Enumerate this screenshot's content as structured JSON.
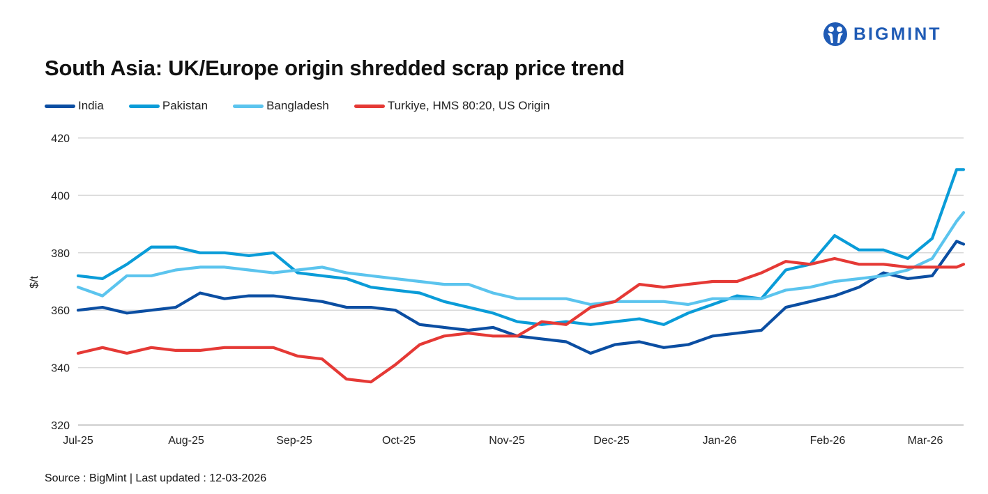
{
  "brand": {
    "name": "BIGMINT",
    "color": "#1F5BB5",
    "icon": "bigmint-logo-icon"
  },
  "title": "South Asia: UK/Europe origin shredded scrap price trend",
  "source": "Source : BigMint | Last updated : 12-03-2026",
  "chart_data": {
    "type": "line",
    "title": "South Asia: UK/Europe origin shredded scrap price trend",
    "xlabel": "",
    "ylabel": "$/t",
    "ylim": [
      320,
      420
    ],
    "yticks": [
      320,
      340,
      360,
      380,
      400,
      420
    ],
    "xlim": [
      "2025-07-01",
      "2026-03-12"
    ],
    "xticks": [
      {
        "date": "2025-07-01",
        "label": "Jul-25"
      },
      {
        "date": "2025-08-01",
        "label": "Aug-25"
      },
      {
        "date": "2025-09-01",
        "label": "Sep-25"
      },
      {
        "date": "2025-10-01",
        "label": "Oct-25"
      },
      {
        "date": "2025-11-01",
        "label": "Nov-25"
      },
      {
        "date": "2025-12-01",
        "label": "Dec-25"
      },
      {
        "date": "2026-01-01",
        "label": "Jan-26"
      },
      {
        "date": "2026-02-01",
        "label": "Feb-26"
      },
      {
        "date": "2026-03-01",
        "label": "Mar-26"
      }
    ],
    "grid": true,
    "legend_position": "top-left",
    "x": [
      "2025-07-01",
      "2025-07-08",
      "2025-07-15",
      "2025-07-22",
      "2025-07-29",
      "2025-08-05",
      "2025-08-12",
      "2025-08-19",
      "2025-08-26",
      "2025-09-02",
      "2025-09-09",
      "2025-09-16",
      "2025-09-23",
      "2025-09-30",
      "2025-10-07",
      "2025-10-14",
      "2025-10-21",
      "2025-10-28",
      "2025-11-04",
      "2025-11-11",
      "2025-11-18",
      "2025-11-25",
      "2025-12-02",
      "2025-12-09",
      "2025-12-16",
      "2025-12-23",
      "2025-12-30",
      "2026-01-06",
      "2026-01-13",
      "2026-01-20",
      "2026-01-27",
      "2026-02-03",
      "2026-02-10",
      "2026-02-17",
      "2026-02-24",
      "2026-03-03",
      "2026-03-10",
      "2026-03-12"
    ],
    "series": [
      {
        "name": "India",
        "color": "#0B4EA2",
        "values": [
          360,
          361,
          359,
          360,
          361,
          366,
          364,
          365,
          365,
          364,
          363,
          361,
          361,
          360,
          355,
          354,
          353,
          354,
          351,
          350,
          349,
          345,
          348,
          349,
          347,
          348,
          351,
          352,
          353,
          361,
          363,
          365,
          368,
          373,
          371,
          372,
          384,
          383
        ]
      },
      {
        "name": "Pakistan",
        "color": "#0A9CD8",
        "values": [
          372,
          371,
          376,
          382,
          382,
          380,
          380,
          379,
          380,
          373,
          372,
          371,
          368,
          367,
          366,
          363,
          361,
          359,
          356,
          355,
          356,
          355,
          356,
          357,
          355,
          359,
          362,
          365,
          364,
          374,
          376,
          386,
          381,
          381,
          378,
          385,
          409,
          409
        ]
      },
      {
        "name": "Bangladesh",
        "color": "#5BC4EE",
        "values": [
          368,
          365,
          372,
          372,
          374,
          375,
          375,
          374,
          373,
          374,
          375,
          373,
          372,
          371,
          370,
          369,
          369,
          366,
          364,
          364,
          364,
          362,
          363,
          363,
          363,
          362,
          364,
          364,
          364,
          367,
          368,
          370,
          371,
          372,
          374,
          378,
          391,
          394
        ]
      },
      {
        "name": "Turkiye, HMS 80:20, US Origin",
        "color": "#E53935",
        "values": [
          345,
          347,
          345,
          347,
          346,
          346,
          347,
          347,
          347,
          344,
          343,
          336,
          335,
          341,
          348,
          351,
          352,
          351,
          351,
          356,
          355,
          361,
          363,
          369,
          368,
          369,
          370,
          370,
          373,
          377,
          376,
          378,
          376,
          376,
          375,
          375,
          375,
          376
        ]
      }
    ]
  }
}
